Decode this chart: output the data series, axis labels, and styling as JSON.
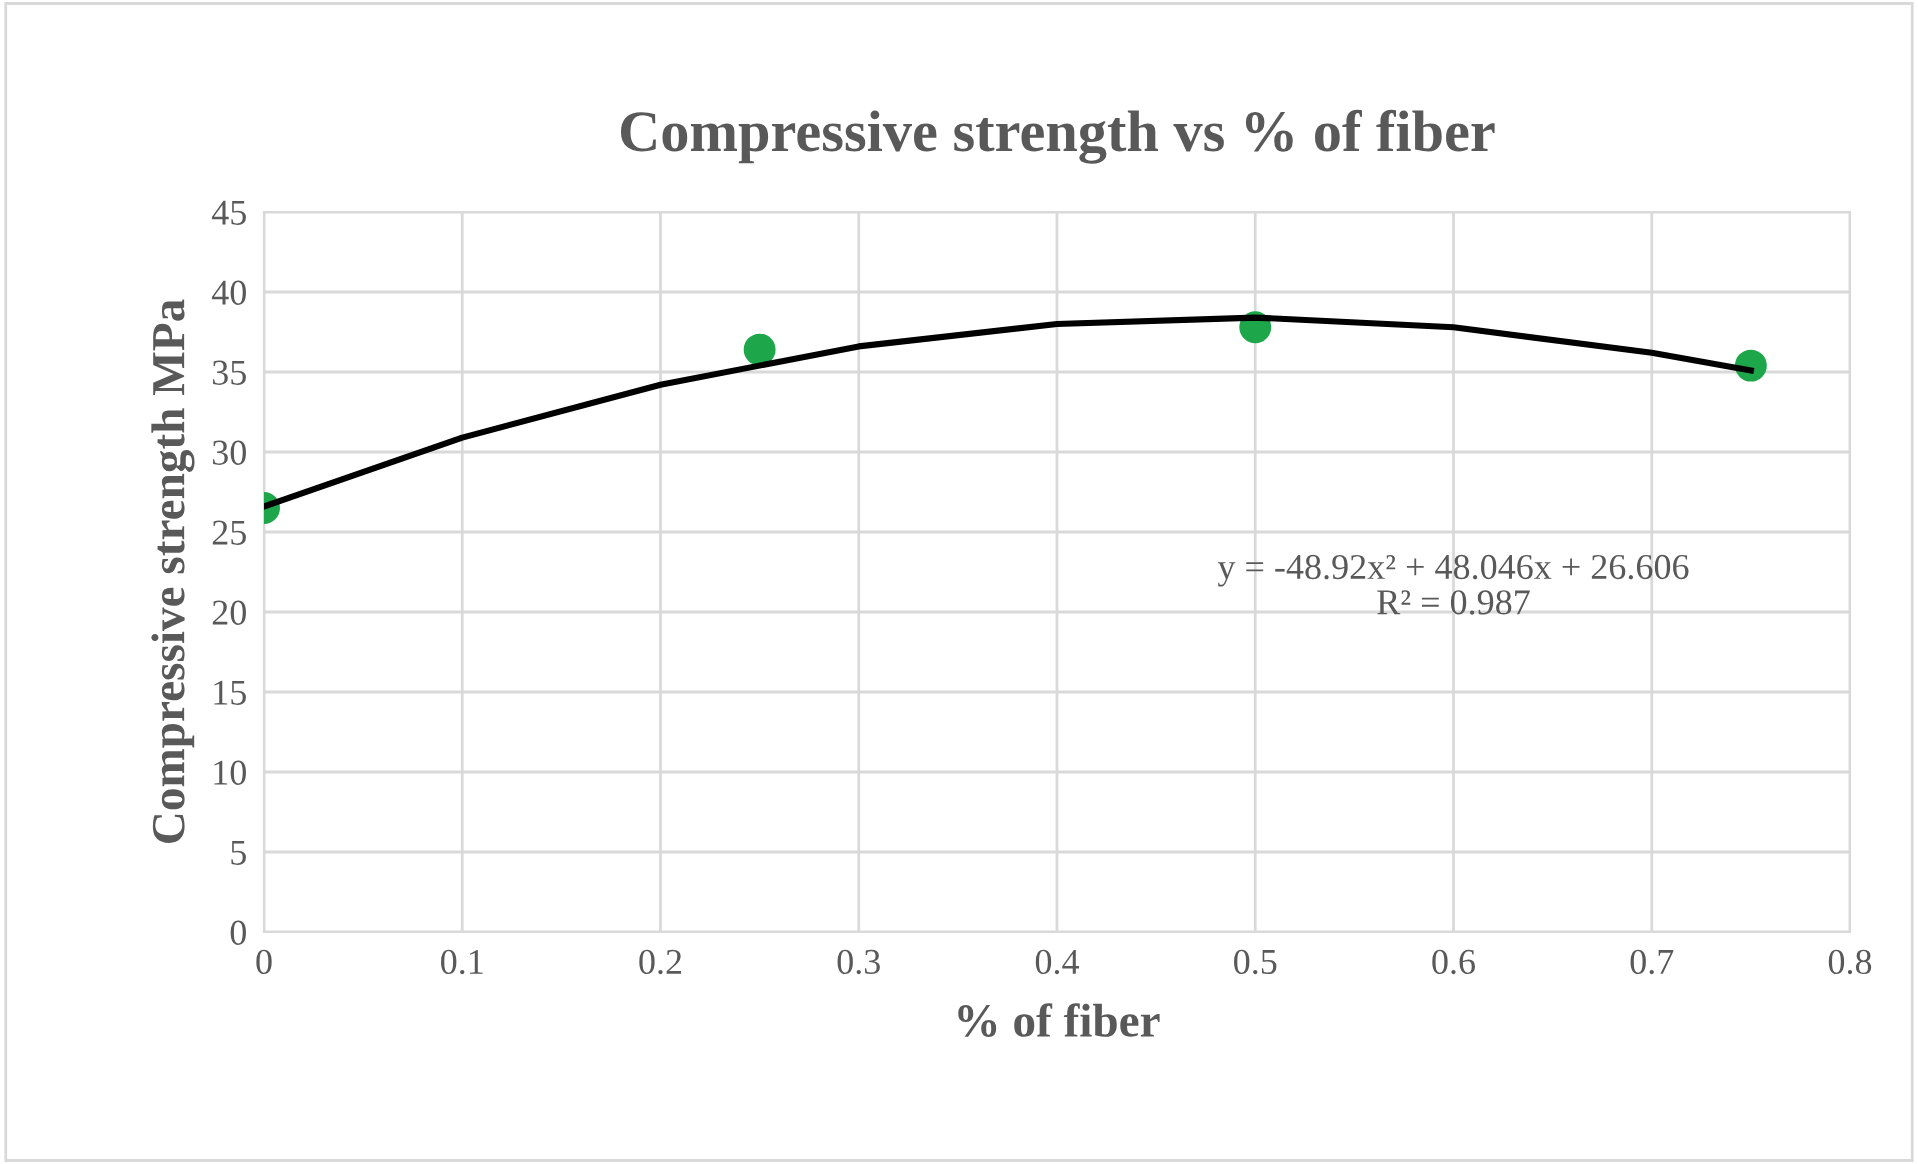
{
  "chart_data": {
    "type": "scatter",
    "title": "Compressive strength vs % of fiber",
    "xlabel": "% of fiber",
    "ylabel": "Compressive strength MPa",
    "xlim": [
      0,
      0.8
    ],
    "xticks": [
      0,
      0.1,
      0.2,
      0.3,
      0.4,
      0.5,
      0.6,
      0.7,
      0.8
    ],
    "ylim": [
      0,
      45
    ],
    "yticks": [
      0,
      5,
      10,
      15,
      20,
      25,
      30,
      35,
      40,
      45
    ],
    "grid": true,
    "legend": false,
    "series": [
      {
        "color": "#1ea64b",
        "marker": "circle",
        "x": [
          0,
          0.25,
          0.5,
          0.75
        ],
        "values": [
          26.5,
          36.4,
          37.8,
          35.4
        ]
      },
      {
        "type": "line",
        "color": "#000000",
        "line_style": "solid",
        "x": [
          0,
          0.1,
          0.2,
          0.3,
          0.4,
          0.5,
          0.6,
          0.7,
          0.75
        ],
        "values": [
          26.6,
          30.9,
          34.2,
          36.6,
          38.0,
          38.4,
          37.8,
          36.2,
          35.1
        ]
      }
    ],
    "annotations": [
      "y = -48.92x² + 48.046x + 26.606\nR² = 0.987"
    ]
  }
}
